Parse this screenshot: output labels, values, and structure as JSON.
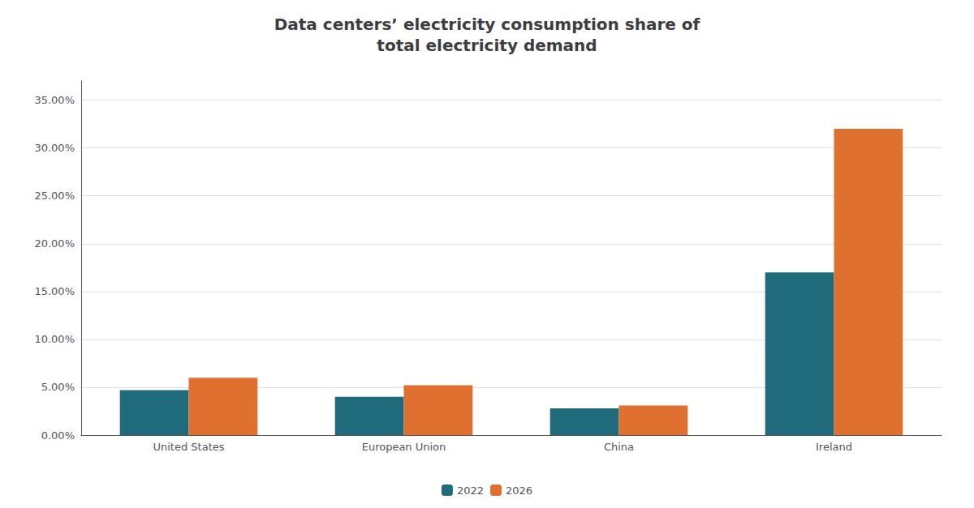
{
  "chart_data": {
    "type": "bar",
    "title": "Data centers’ electricity consumption share of\ntotal electricity demand",
    "categories": [
      "United States",
      "European Union",
      "China",
      "Ireland"
    ],
    "series": [
      {
        "name": "2022",
        "color": "#1f6b7c",
        "values": [
          0.047,
          0.04,
          0.028,
          0.17
        ]
      },
      {
        "name": "2026",
        "color": "#e07030",
        "values": [
          0.06,
          0.052,
          0.031,
          0.32
        ]
      }
    ],
    "ylim": [
      0,
      0.37
    ],
    "yticks": [
      {
        "value": 0.0,
        "label": "0.00%"
      },
      {
        "value": 0.05,
        "label": "5.00%"
      },
      {
        "value": 0.1,
        "label": "10.00%"
      },
      {
        "value": 0.15,
        "label": "15.00%"
      },
      {
        "value": 0.2,
        "label": "20.00%"
      },
      {
        "value": 0.25,
        "label": "25.00%"
      },
      {
        "value": 0.3,
        "label": "30.00%"
      },
      {
        "value": 0.35,
        "label": "35.00%"
      }
    ],
    "grid": true,
    "legend": "bottom"
  }
}
